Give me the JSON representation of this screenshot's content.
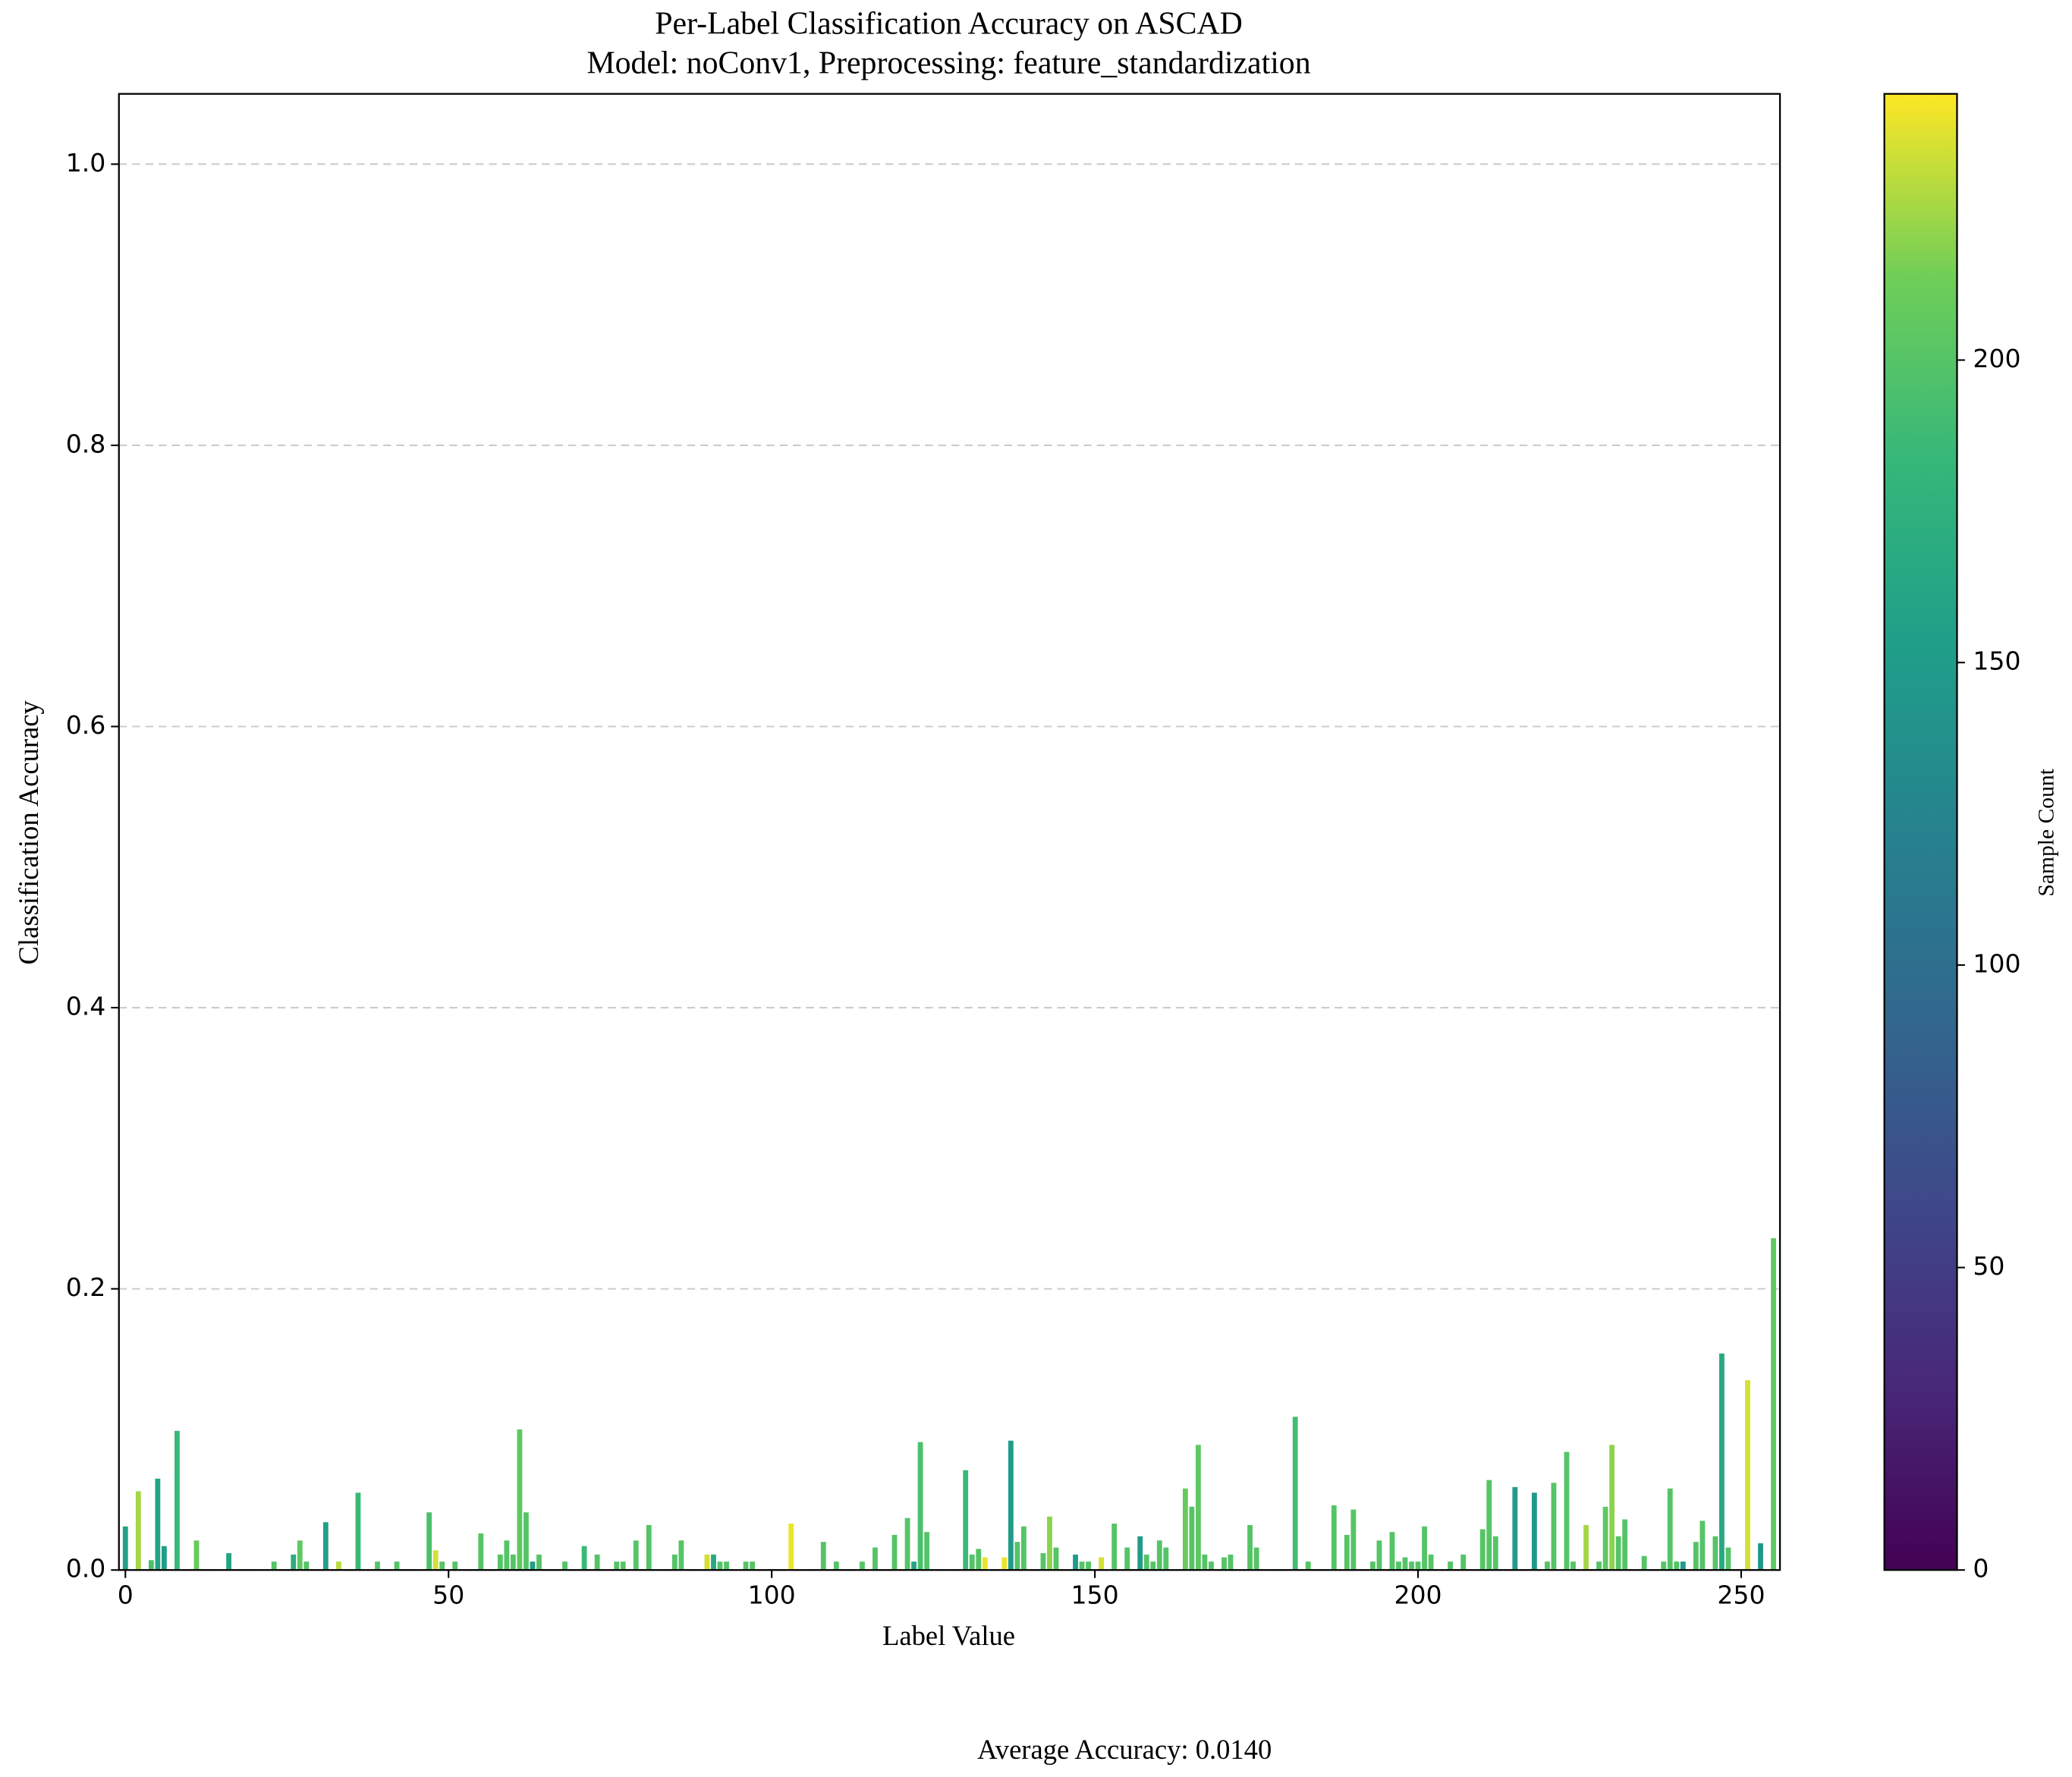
{
  "chart_data": {
    "type": "bar",
    "title": "Per-Label Classification Accuracy on ASCAD",
    "subtitle": "Model: noConv1, Preprocessing: feature_standardization",
    "x_label": "Label Value",
    "y_label": "Classification Accuracy",
    "annotation": "Average Accuracy: 0.0140",
    "xlim": [
      -1,
      256
    ],
    "ylim": [
      0,
      1.05
    ],
    "xticks": [
      0,
      50,
      100,
      150,
      200,
      250
    ],
    "yticks": [
      {
        "value": 0,
        "label": "0.0"
      },
      0.2,
      0.4,
      0.6,
      0.8,
      {
        "value": 1,
        "label": "1.0"
      }
    ],
    "grid": true,
    "colormap": "viridis",
    "colorbar": {
      "label": "Sample Count",
      "lim": [
        0,
        244
      ],
      "ticks": [
        0,
        50,
        100,
        150,
        200
      ]
    },
    "x": [
      0,
      1,
      2,
      3,
      4,
      5,
      6,
      7,
      8,
      9,
      10,
      11,
      12,
      13,
      14,
      15,
      16,
      17,
      18,
      19,
      20,
      21,
      22,
      23,
      24,
      25,
      26,
      27,
      28,
      29,
      30,
      31,
      32,
      33,
      34,
      35,
      36,
      37,
      38,
      39,
      40,
      41,
      42,
      43,
      44,
      45,
      46,
      47,
      48,
      49,
      50,
      51,
      52,
      53,
      54,
      55,
      56,
      57,
      58,
      59,
      60,
      61,
      62,
      63,
      64,
      65,
      66,
      67,
      68,
      69,
      70,
      71,
      72,
      73,
      74,
      75,
      76,
      77,
      78,
      79,
      80,
      81,
      82,
      83,
      84,
      85,
      86,
      87,
      88,
      89,
      90,
      91,
      92,
      93,
      94,
      95,
      96,
      97,
      98,
      99,
      100,
      101,
      102,
      103,
      104,
      105,
      106,
      107,
      108,
      109,
      110,
      111,
      112,
      113,
      114,
      115,
      116,
      117,
      118,
      119,
      120,
      121,
      122,
      123,
      124,
      125,
      126,
      127,
      128,
      129,
      130,
      131,
      132,
      133,
      134,
      135,
      136,
      137,
      138,
      139,
      140,
      141,
      142,
      143,
      144,
      145,
      146,
      147,
      148,
      149,
      150,
      151,
      152,
      153,
      154,
      155,
      156,
      157,
      158,
      159,
      160,
      161,
      162,
      163,
      164,
      165,
      166,
      167,
      168,
      169,
      170,
      171,
      172,
      173,
      174,
      175,
      176,
      177,
      178,
      179,
      180,
      181,
      182,
      183,
      184,
      185,
      186,
      187,
      188,
      189,
      190,
      191,
      192,
      193,
      194,
      195,
      196,
      197,
      198,
      199,
      200,
      201,
      202,
      203,
      204,
      205,
      206,
      207,
      208,
      209,
      210,
      211,
      212,
      213,
      214,
      215,
      216,
      217,
      218,
      219,
      220,
      221,
      222,
      223,
      224,
      225,
      226,
      227,
      228,
      229,
      230,
      231,
      232,
      233,
      234,
      235,
      236,
      237,
      238,
      239,
      240,
      241,
      242,
      243,
      244,
      245,
      246,
      247,
      248,
      249,
      250,
      251,
      252,
      253,
      254,
      255
    ],
    "values": [
      0.031,
      0,
      0.056,
      0,
      0.007,
      0.065,
      0.017,
      0,
      0.099,
      0,
      0,
      0.021,
      0,
      0,
      0,
      0,
      0.012,
      0,
      0,
      0,
      0,
      0,
      0,
      0.006,
      0,
      0,
      0.011,
      0.021,
      0.006,
      0,
      0,
      0.034,
      0,
      0.006,
      0,
      0,
      0.055,
      0,
      0,
      0.006,
      0,
      0,
      0.006,
      0,
      0,
      0,
      0,
      0.041,
      0.014,
      0.006,
      0,
      0.006,
      0,
      0,
      0,
      0.026,
      0,
      0,
      0.011,
      0.021,
      0.011,
      0.1,
      0.041,
      0.006,
      0.011,
      0,
      0,
      0,
      0.006,
      0,
      0,
      0.017,
      0,
      0.011,
      0,
      0,
      0.006,
      0.006,
      0,
      0.021,
      0,
      0.032,
      0,
      0,
      0,
      0.011,
      0.021,
      0,
      0,
      0,
      0.011,
      0.011,
      0.006,
      0.006,
      0,
      0,
      0.006,
      0.006,
      0,
      0,
      0,
      0,
      0,
      0.033,
      0,
      0,
      0,
      0,
      0.02,
      0,
      0.006,
      0,
      0,
      0,
      0.006,
      0,
      0.016,
      0,
      0,
      0.025,
      0,
      0.037,
      0.006,
      0.091,
      0.027,
      0,
      0,
      0,
      0,
      0,
      0.071,
      0.011,
      0.015,
      0.009,
      0,
      0,
      0.009,
      0.092,
      0.02,
      0.031,
      0,
      0,
      0.012,
      0.038,
      0.016,
      0,
      0,
      0.011,
      0.006,
      0.006,
      0,
      0.009,
      0,
      0.033,
      0,
      0.016,
      0,
      0.024,
      0.011,
      0.006,
      0.021,
      0.016,
      0,
      0,
      0.058,
      0.045,
      0.089,
      0.011,
      0.006,
      0,
      0.009,
      0.011,
      0,
      0,
      0.032,
      0.016,
      0,
      0,
      0,
      0,
      0,
      0.109,
      0,
      0.006,
      0,
      0,
      0,
      0.046,
      0,
      0.025,
      0.043,
      0,
      0,
      0.006,
      0.021,
      0,
      0.027,
      0.006,
      0.009,
      0.006,
      0.006,
      0.031,
      0.011,
      0,
      0,
      0.006,
      0,
      0.011,
      0,
      0,
      0.029,
      0.064,
      0.024,
      0,
      0,
      0.059,
      0,
      0,
      0.055,
      0,
      0.006,
      0.062,
      0,
      0.084,
      0.006,
      0,
      0.032,
      0,
      0.006,
      0.045,
      0.089,
      0.024,
      0.036,
      0,
      0,
      0.01,
      0,
      0,
      0.006,
      0.058,
      0.006,
      0.006,
      0,
      0.02,
      0.035,
      0,
      0.024,
      0.154,
      0.016,
      0,
      0,
      0.135,
      0,
      0.019,
      0,
      0.236
    ],
    "color_values": [
      155,
      200,
      225,
      200,
      195,
      160,
      150,
      200,
      185,
      200,
      200,
      210,
      200,
      200,
      200,
      200,
      160,
      200,
      200,
      200,
      200,
      200,
      200,
      200,
      200,
      200,
      170,
      205,
      200,
      200,
      200,
      155,
      200,
      230,
      200,
      200,
      185,
      200,
      200,
      200,
      200,
      200,
      200,
      200,
      200,
      200,
      200,
      195,
      235,
      200,
      200,
      200,
      200,
      200,
      200,
      200,
      200,
      200,
      200,
      200,
      200,
      205,
      200,
      150,
      200,
      200,
      200,
      200,
      200,
      200,
      200,
      185,
      200,
      200,
      200,
      200,
      200,
      200,
      200,
      200,
      200,
      200,
      200,
      200,
      200,
      200,
      200,
      200,
      200,
      200,
      235,
      165,
      200,
      200,
      200,
      200,
      200,
      200,
      200,
      200,
      200,
      200,
      200,
      240,
      200,
      200,
      200,
      200,
      200,
      200,
      200,
      200,
      200,
      200,
      200,
      200,
      200,
      200,
      200,
      200,
      200,
      200,
      160,
      195,
      200,
      200,
      200,
      200,
      200,
      200,
      185,
      200,
      200,
      240,
      200,
      200,
      240,
      150,
      200,
      200,
      200,
      200,
      200,
      220,
      200,
      200,
      200,
      150,
      200,
      200,
      200,
      235,
      200,
      200,
      200,
      200,
      200,
      150,
      200,
      200,
      200,
      200,
      200,
      200,
      210,
      200,
      205,
      200,
      200,
      200,
      200,
      200,
      200,
      200,
      200,
      200,
      200,
      200,
      200,
      200,
      200,
      190,
      200,
      200,
      200,
      200,
      200,
      200,
      200,
      200,
      200,
      200,
      200,
      200,
      200,
      200,
      200,
      200,
      200,
      200,
      200,
      200,
      200,
      200,
      200,
      200,
      200,
      200,
      200,
      200,
      200,
      200,
      200,
      200,
      200,
      150,
      200,
      200,
      145,
      200,
      200,
      200,
      200,
      200,
      200,
      200,
      225,
      200,
      200,
      205,
      220,
      200,
      200,
      200,
      200,
      200,
      200,
      200,
      200,
      200,
      200,
      150,
      200,
      200,
      200,
      200,
      200,
      165,
      200,
      200,
      200,
      235,
      200,
      145,
      200,
      205
    ]
  }
}
